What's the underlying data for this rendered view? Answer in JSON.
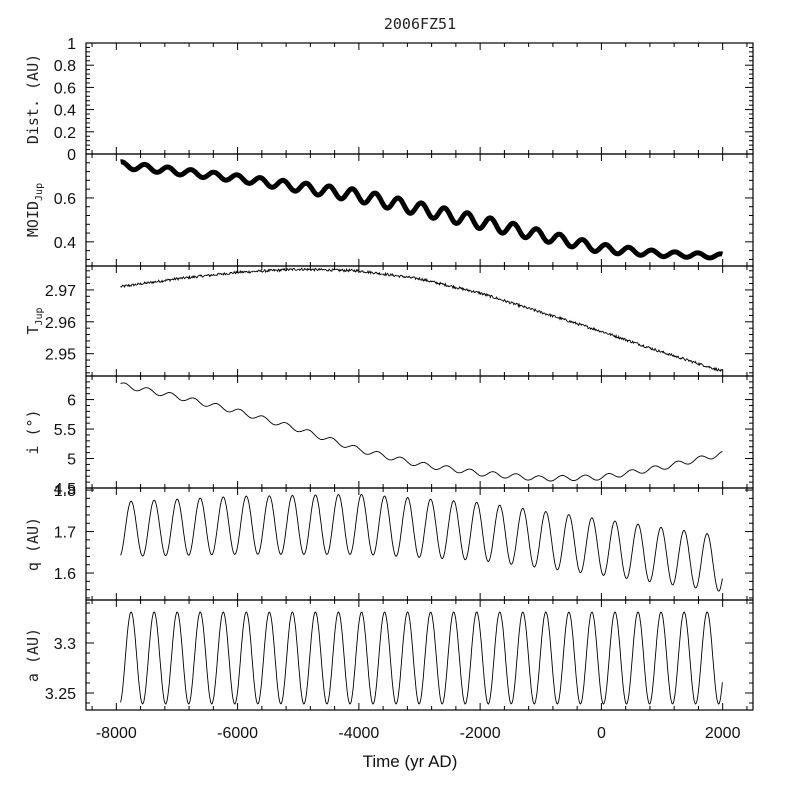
{
  "title": "2006FZ51",
  "chart_data": [
    {
      "type": "line",
      "id": "dist",
      "ylabel": "Dist. (AU)",
      "ylim": [
        0,
        1
      ],
      "yticks": [
        0,
        0.2,
        0.4,
        0.6,
        0.8,
        1
      ],
      "ytick_labels": [
        "0",
        "0.2",
        "0.4",
        "0.6",
        "0.8",
        "1"
      ],
      "series": []
    },
    {
      "type": "line",
      "id": "moid",
      "ylabel_main": "MOID",
      "ylabel_sub": "Jup",
      "ylim": [
        0.29,
        0.8
      ],
      "yticks": [
        0.4,
        0.6
      ],
      "ytick_labels": [
        "0.4",
        "0.6"
      ],
      "series": [
        {
          "style": "thick-dots",
          "trend_x": [
            -7930,
            -6000,
            -4000,
            -2000,
            0,
            1000,
            1995
          ],
          "trend_y": [
            0.75,
            0.69,
            0.61,
            0.49,
            0.37,
            0.345,
            0.335
          ],
          "osc_period": 380,
          "osc_amp": [
            0.015,
            0.015,
            0.028,
            0.03,
            0.02,
            0.012,
            0.01
          ]
        }
      ]
    },
    {
      "type": "line",
      "id": "tjup",
      "ylabel_main": "T",
      "ylabel_sub": "Jup",
      "ylim": [
        2.943,
        2.9775
      ],
      "yticks": [
        2.95,
        2.96,
        2.97
      ],
      "ytick_labels": [
        "2.95",
        "2.96",
        "2.97"
      ],
      "series": [
        {
          "style": "noisy-line",
          "trend_x": [
            -7930,
            -7000,
            -6000,
            -5000,
            -4000,
            -3000,
            -2000,
            -1000,
            0,
            1000,
            1995
          ],
          "trend_y": [
            2.971,
            2.9735,
            2.9755,
            2.9765,
            2.976,
            2.9735,
            2.969,
            2.963,
            2.957,
            2.9505,
            2.9445
          ],
          "noise": 0.0005
        }
      ]
    },
    {
      "type": "line",
      "id": "incl",
      "ylabel": "i (°)",
      "ylim": [
        4.5,
        6.4
      ],
      "yticks": [
        4.5,
        5,
        5.5,
        6
      ],
      "ytick_labels": [
        "4.5",
        "5",
        "5.5",
        "6"
      ],
      "series": [
        {
          "style": "line",
          "trend_x": [
            -7930,
            -7000,
            -6000,
            -5000,
            -4000,
            -3000,
            -2000,
            -1000,
            0,
            1000,
            1995
          ],
          "trend_y": [
            6.25,
            6.05,
            5.8,
            5.5,
            5.15,
            4.9,
            4.75,
            4.66,
            4.68,
            4.85,
            5.08
          ],
          "osc_period": 380,
          "osc_amp": 0.045
        }
      ]
    },
    {
      "type": "line",
      "id": "q",
      "ylabel": "q (AU)",
      "ylim": [
        1.535,
        1.805
      ],
      "yticks": [
        1.6,
        1.7,
        1.8
      ],
      "ytick_labels": [
        "1.6",
        "1.7",
        "1.8"
      ],
      "series": [
        {
          "style": "line",
          "osc_period": 380,
          "trend_x": [
            -7930,
            -6000,
            -4000,
            -2000,
            0,
            1000,
            1995
          ],
          "max_y": [
            1.772,
            1.785,
            1.79,
            1.77,
            1.73,
            1.71,
            1.69
          ],
          "min_y": [
            1.64,
            1.645,
            1.645,
            1.63,
            1.595,
            1.575,
            1.555
          ]
        }
      ]
    },
    {
      "type": "line",
      "id": "a",
      "ylabel": "a (AU)",
      "ylim": [
        3.233,
        3.343
      ],
      "yticks": [
        3.25,
        3.3
      ],
      "ytick_labels": [
        "3.25",
        "3.3"
      ],
      "series": [
        {
          "style": "line",
          "osc_period": 380,
          "mean": 3.285,
          "amp": 0.046
        }
      ]
    }
  ],
  "xaxis": {
    "label": "Time (yr AD)",
    "xlim": [
      -8500,
      2500
    ],
    "ticks": [
      -8000,
      -6000,
      -4000,
      -2000,
      0,
      2000
    ],
    "tick_labels": [
      "-8000",
      "-6000",
      "-4000",
      "-2000",
      "0",
      "2000"
    ],
    "minor_step": 400
  }
}
